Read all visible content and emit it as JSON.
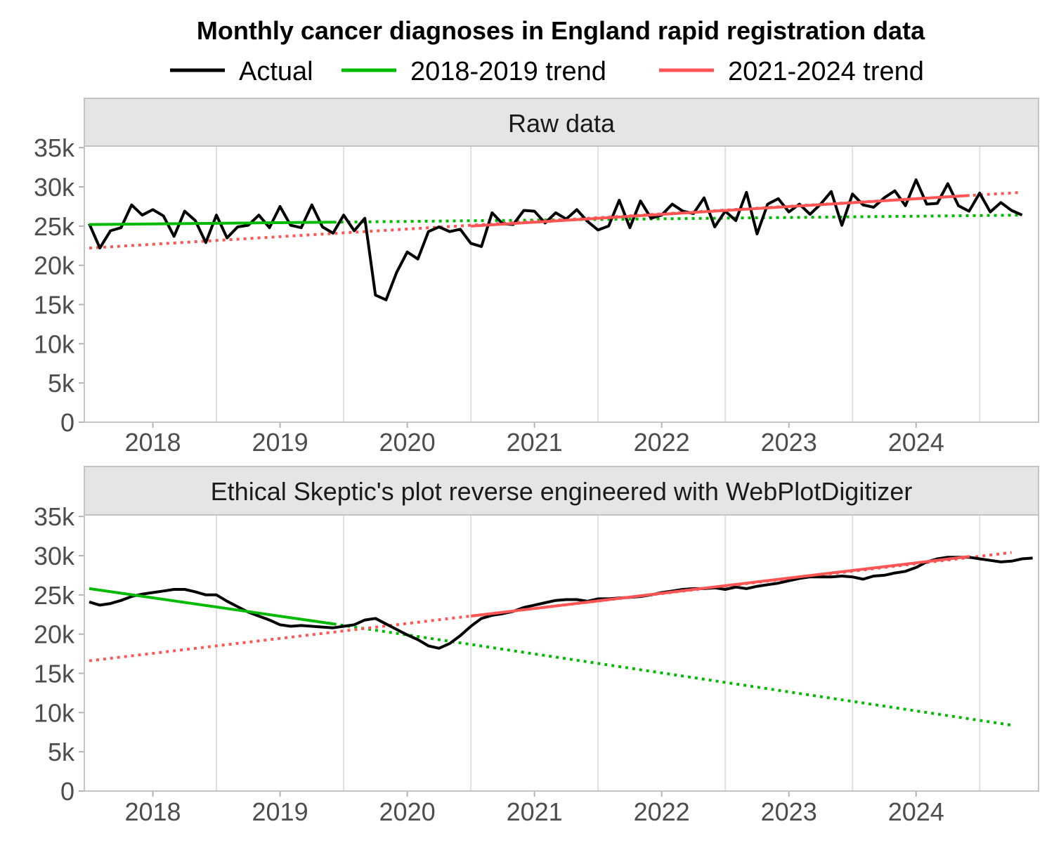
{
  "chart_data": {
    "type": "line",
    "title": "Monthly cancer diagnoses in England rapid registration data",
    "legend": {
      "placement": "top",
      "entries": [
        {
          "label": "Actual",
          "color": "#000000"
        },
        {
          "label": "2018-2019 trend",
          "color": "#00ba00"
        },
        {
          "label": "2021-2024 trend",
          "color": "#ff5555"
        }
      ]
    },
    "x_axis": {
      "tick_labels": [
        "2018",
        "2019",
        "2020",
        "2021",
        "2022",
        "2023",
        "2024"
      ],
      "range": [
        2018.0,
        2025.33
      ]
    },
    "y_axis": {
      "tick_labels": [
        "0",
        "5k",
        "10k",
        "15k",
        "20k",
        "25k",
        "30k",
        "35k"
      ],
      "range": [
        0,
        35000
      ]
    },
    "grid": true,
    "panels": [
      {
        "strip_label": "Raw data",
        "series": [
          {
            "name": "Actual",
            "color": "#000000",
            "x_start": 2018.0,
            "x_step": 0.08333,
            "values": [
              25300,
              22200,
              24400,
              24800,
              27700,
              26400,
              27100,
              26300,
              23700,
              26900,
              25700,
              22900,
              26400,
              23500,
              24900,
              25100,
              26400,
              24800,
              27500,
              25100,
              24800,
              27700,
              24900,
              24100,
              26400,
              24400,
              26000,
              16200,
              15600,
              19100,
              21700,
              20800,
              24300,
              24900,
              24300,
              24600,
              22800,
              22400,
              26700,
              25300,
              25200,
              27000,
              26900,
              25400,
              26700,
              25900,
              27100,
              25600,
              24500,
              25000,
              28300,
              24800,
              28200,
              26000,
              26400,
              27800,
              26900,
              26600,
              28600,
              24900,
              26900,
              25700,
              29300,
              24000,
              27800,
              28500,
              26800,
              27800,
              26500,
              27800,
              29400,
              25100,
              29100,
              27700,
              27400,
              28600,
              29500,
              27600,
              30900,
              27800,
              27900,
              30400,
              27600,
              26900,
              29200,
              26800,
              28000,
              27000,
              26400
            ]
          },
          {
            "name": "2018-2019 trend",
            "color": "#00ba00",
            "x": [
              2018.0,
              2019.92
            ],
            "y": [
              25200,
              25500
            ],
            "extended_x": [
              2019.92,
              2025.33
            ],
            "extended_y": [
              25500,
              26400
            ],
            "extension_style": "dotted"
          },
          {
            "name": "2021-2024 trend",
            "color": "#ff5555",
            "x": [
              2021.0,
              2024.92
            ],
            "y": [
              25000,
              28900
            ],
            "extended_x": [
              2018.0,
              2025.33
            ],
            "extended_y": [
              22200,
              29300
            ],
            "extension_style": "dotted"
          }
        ]
      },
      {
        "strip_label": "Ethical Skeptic's plot reverse engineered with WebPlotDigitizer",
        "series": [
          {
            "name": "Actual",
            "color": "#000000",
            "x_start": 2018.0,
            "x_step": 0.08333,
            "values": [
              24100,
              23700,
              23900,
              24300,
              24800,
              25100,
              25300,
              25500,
              25700,
              25700,
              25400,
              25000,
              25000,
              24200,
              23500,
              22800,
              22300,
              21800,
              21200,
              21000,
              21100,
              21000,
              20900,
              20800,
              21000,
              21200,
              21800,
              22000,
              21300,
              20600,
              19900,
              19300,
              18500,
              18200,
              18800,
              19800,
              21000,
              22000,
              22400,
              22600,
              22900,
              23400,
              23700,
              24000,
              24300,
              24400,
              24400,
              24200,
              24500,
              24500,
              24600,
              24700,
              24800,
              25000,
              25300,
              25500,
              25700,
              25800,
              25800,
              25900,
              25700,
              26000,
              25800,
              26100,
              26300,
              26500,
              26800,
              27100,
              27300,
              27300,
              27300,
              27400,
              27300,
              27000,
              27400,
              27500,
              27800,
              28000,
              28500,
              29200,
              29600,
              29800,
              29800,
              29800,
              29600,
              29400,
              29200,
              29300,
              29600,
              29700
            ]
          },
          {
            "name": "2018-2019 trend",
            "color": "#00ba00",
            "x": [
              2018.0,
              2019.92
            ],
            "y": [
              25800,
              21300
            ],
            "extended_x": [
              2019.92,
              2025.25
            ],
            "extended_y": [
              21300,
              8400
            ],
            "extension_style": "dotted"
          },
          {
            "name": "2021-2024 trend",
            "color": "#ff5555",
            "x": [
              2021.0,
              2024.92
            ],
            "y": [
              22300,
              29900
            ],
            "extended_x": [
              2018.0,
              2025.25
            ],
            "extended_y": [
              16600,
              30400
            ],
            "extension_style": "dotted"
          }
        ]
      }
    ]
  }
}
